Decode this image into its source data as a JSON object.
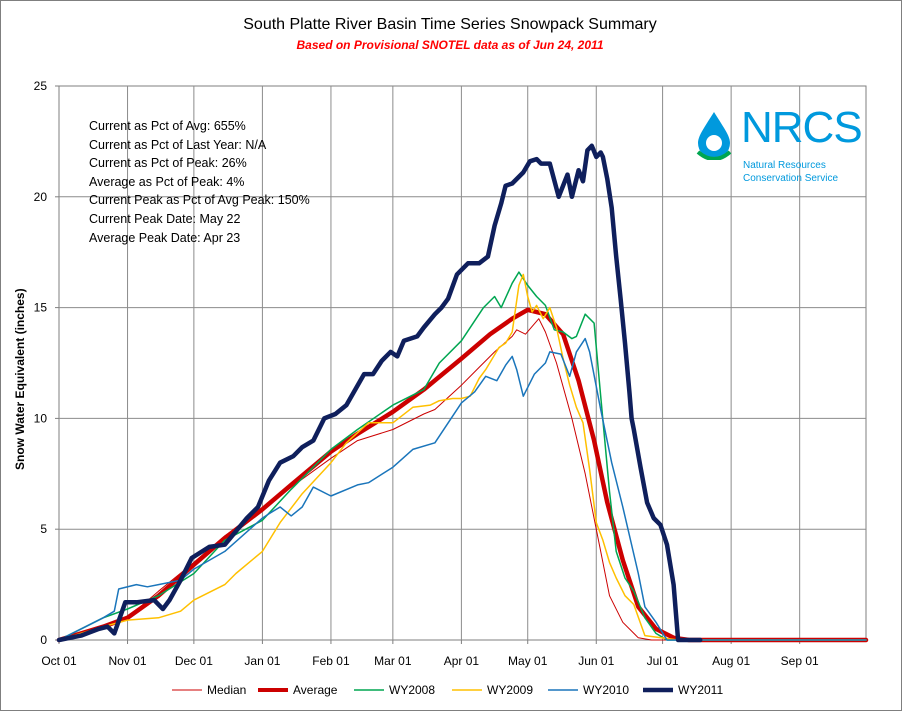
{
  "chart_data": {
    "type": "line",
    "title": "South Platte River Basin Time Series Snowpack Summary",
    "subtitle": "Based on Provisional SNOTEL data as of Jun 24, 2011",
    "ylabel": "Snow Water Equivalent (inches)",
    "xlabel": "",
    "ylim": [
      0,
      25
    ],
    "yticks": [
      "0",
      "5",
      "10",
      "15",
      "20",
      "25"
    ],
    "xticks": [
      "Oct 01",
      "Nov 01",
      "Dec 01",
      "Jan 01",
      "Feb 01",
      "Mar 01",
      "Apr 01",
      "May 01",
      "Jun 01",
      "Jul 01",
      "Aug 01",
      "Sep 01"
    ],
    "xlim_days": [
      0,
      365
    ],
    "grid": true,
    "legend_placement": "bottom",
    "stats": [
      "Current as Pct of Avg: 655%",
      "Current as Pct of Last Year: N/A",
      "Current as Pct of Peak: 26%",
      "Average as Pct of Peak: 4%",
      "Current Peak as Pct of Avg Peak: 150%",
      "Current Peak Date: May 22",
      "Average Peak Date: Apr 23"
    ],
    "series": [
      {
        "name": "Median",
        "color": "#cc0000",
        "width": 1,
        "x": [
          0,
          10,
          20,
          31,
          45,
          61,
          75,
          92,
          105,
          123,
          135,
          151,
          165,
          170,
          182,
          190,
          197,
          205,
          207,
          211,
          217,
          220,
          225,
          232,
          238,
          245,
          249,
          255,
          262,
          268,
          275,
          285,
          300,
          365
        ],
        "y": [
          0,
          0.3,
          0.6,
          1,
          2.2,
          3.5,
          4.7,
          5.9,
          6.9,
          8.2,
          9,
          9.5,
          10.2,
          10.4,
          11.5,
          12.3,
          13,
          13.7,
          14,
          13.8,
          14.5,
          13.9,
          12.5,
          10,
          7.5,
          4,
          2,
          0.8,
          0.1,
          0,
          0,
          0,
          0,
          0
        ]
      },
      {
        "name": "Average",
        "color": "#cc0000",
        "width": 4.5,
        "x": [
          0,
          10,
          20,
          31,
          45,
          61,
          75,
          92,
          105,
          123,
          135,
          151,
          165,
          182,
          195,
          205,
          212,
          220,
          228,
          235,
          242,
          248,
          255,
          262,
          270,
          278,
          285,
          300,
          365
        ],
        "y": [
          0,
          0.3,
          0.6,
          1,
          2,
          3.4,
          4.6,
          5.9,
          7,
          8.5,
          9.3,
          10.3,
          11.3,
          12.7,
          13.8,
          14.5,
          14.9,
          14.7,
          13.8,
          11.7,
          9,
          6.2,
          3.6,
          1.5,
          0.5,
          0.1,
          0,
          0,
          0
        ]
      },
      {
        "name": "WY2008",
        "color": "#00a651",
        "width": 1.5,
        "x": [
          0,
          10,
          20,
          31,
          45,
          61,
          75,
          92,
          105,
          123,
          135,
          151,
          165,
          172,
          182,
          192,
          197,
          200,
          205,
          208,
          212,
          216,
          220,
          224,
          228,
          232,
          234,
          238,
          242,
          245,
          249,
          252,
          256,
          260,
          265,
          270,
          275,
          285,
          365
        ],
        "y": [
          0,
          0.5,
          1,
          1.4,
          2,
          3,
          4.5,
          5.4,
          6.8,
          8.6,
          9.5,
          10.6,
          11.3,
          12.5,
          13.5,
          15,
          15.5,
          15,
          16.1,
          16.6,
          16,
          15.5,
          15.1,
          14,
          13.9,
          13.6,
          13.7,
          14.7,
          14.3,
          11,
          6.7,
          4,
          2.8,
          2.2,
          1,
          0.3,
          0,
          0,
          0
        ]
      },
      {
        "name": "WY2009",
        "color": "#ffc000",
        "width": 1.5,
        "x": [
          0,
          10,
          20,
          31,
          45,
          55,
          61,
          75,
          80,
          92,
          100,
          110,
          123,
          130,
          140,
          151,
          160,
          168,
          172,
          178,
          182,
          186,
          190,
          193,
          196,
          199,
          202,
          205,
          208,
          210,
          212,
          214,
          216,
          219,
          222,
          225,
          228,
          231,
          234,
          237,
          240,
          243,
          246,
          249,
          252,
          256,
          260,
          265,
          280,
          365
        ],
        "y": [
          0,
          0.3,
          0.6,
          0.9,
          1,
          1.3,
          1.8,
          2.5,
          3,
          4,
          5.3,
          6.6,
          8,
          8.9,
          9.8,
          9.8,
          10.5,
          10.6,
          10.8,
          10.9,
          10.9,
          11,
          11.8,
          12.2,
          12.7,
          13.2,
          13.4,
          13.9,
          16,
          16.5,
          15.5,
          14.8,
          15.1,
          14.5,
          15,
          14.1,
          12.7,
          11.5,
          10.5,
          9.8,
          7.7,
          5.3,
          4.5,
          3.5,
          2.8,
          2,
          1.6,
          0.2,
          0,
          0
        ]
      },
      {
        "name": "WY2010",
        "color": "#1a75bb",
        "width": 1.5,
        "x": [
          0,
          10,
          20,
          25,
          27,
          35,
          40,
          45,
          55,
          61,
          75,
          92,
          95,
          100,
          105,
          110,
          115,
          123,
          135,
          140,
          151,
          160,
          170,
          182,
          188,
          193,
          198,
          202,
          205,
          207,
          210,
          215,
          220,
          222,
          227,
          231,
          234,
          238,
          240,
          245,
          250,
          255,
          262,
          265,
          270,
          275,
          365
        ],
        "y": [
          0,
          0.5,
          1,
          1.3,
          2.3,
          2.5,
          2.4,
          2.5,
          2.7,
          3.2,
          4,
          5.5,
          5.7,
          6,
          5.6,
          6,
          6.9,
          6.5,
          7,
          7.1,
          7.8,
          8.6,
          8.9,
          10.7,
          11.2,
          11.9,
          11.7,
          12.4,
          12.8,
          12.2,
          11,
          12,
          12.5,
          13,
          12.9,
          11.9,
          13,
          13.6,
          13,
          10.4,
          8,
          6,
          3,
          1.5,
          0.8,
          0,
          0
        ]
      },
      {
        "name": "WY2011",
        "color": "#0f1f5c",
        "width": 4.5,
        "x": [
          0,
          10,
          18,
          22,
          25,
          30,
          35,
          43,
          47,
          50,
          55,
          60,
          68,
          75,
          85,
          90,
          95,
          100,
          106,
          110,
          115,
          120,
          125,
          130,
          138,
          142,
          146,
          150,
          153,
          156,
          162,
          165,
          170,
          173,
          176,
          180,
          185,
          188,
          190,
          194,
          197,
          200,
          202,
          205,
          210,
          213,
          216,
          218,
          222,
          226,
          228,
          230,
          232,
          235,
          237,
          239,
          241,
          243,
          245,
          246,
          248,
          250,
          252,
          254,
          256,
          258,
          259,
          260,
          263,
          266,
          269,
          272,
          275,
          278,
          280,
          285,
          290
        ],
        "y": [
          0,
          0.2,
          0.5,
          0.6,
          0.3,
          1.7,
          1.7,
          1.8,
          1.4,
          1.8,
          2.7,
          3.7,
          4.2,
          4.3,
          5.5,
          6,
          7.2,
          8,
          8.3,
          8.7,
          9,
          10,
          10.2,
          10.6,
          12,
          12,
          12.6,
          13,
          12.8,
          13.5,
          13.7,
          14.1,
          14.7,
          15,
          15.4,
          16.5,
          17,
          17,
          17,
          17.3,
          18.7,
          19.7,
          20.5,
          20.6,
          21.1,
          21.6,
          21.7,
          21.5,
          21.5,
          20,
          20.5,
          21,
          20,
          21.2,
          20.7,
          22.1,
          22.3,
          21.8,
          22,
          21.8,
          20.8,
          19.5,
          17.3,
          15.4,
          13.4,
          11.2,
          10,
          9.5,
          7.8,
          6.2,
          5.5,
          5.2,
          4.3,
          2.5,
          0,
          0,
          0
        ]
      }
    ]
  },
  "logo": {
    "text": "NRCS",
    "sub1": "Natural Resources",
    "sub2": "Conservation Service"
  }
}
